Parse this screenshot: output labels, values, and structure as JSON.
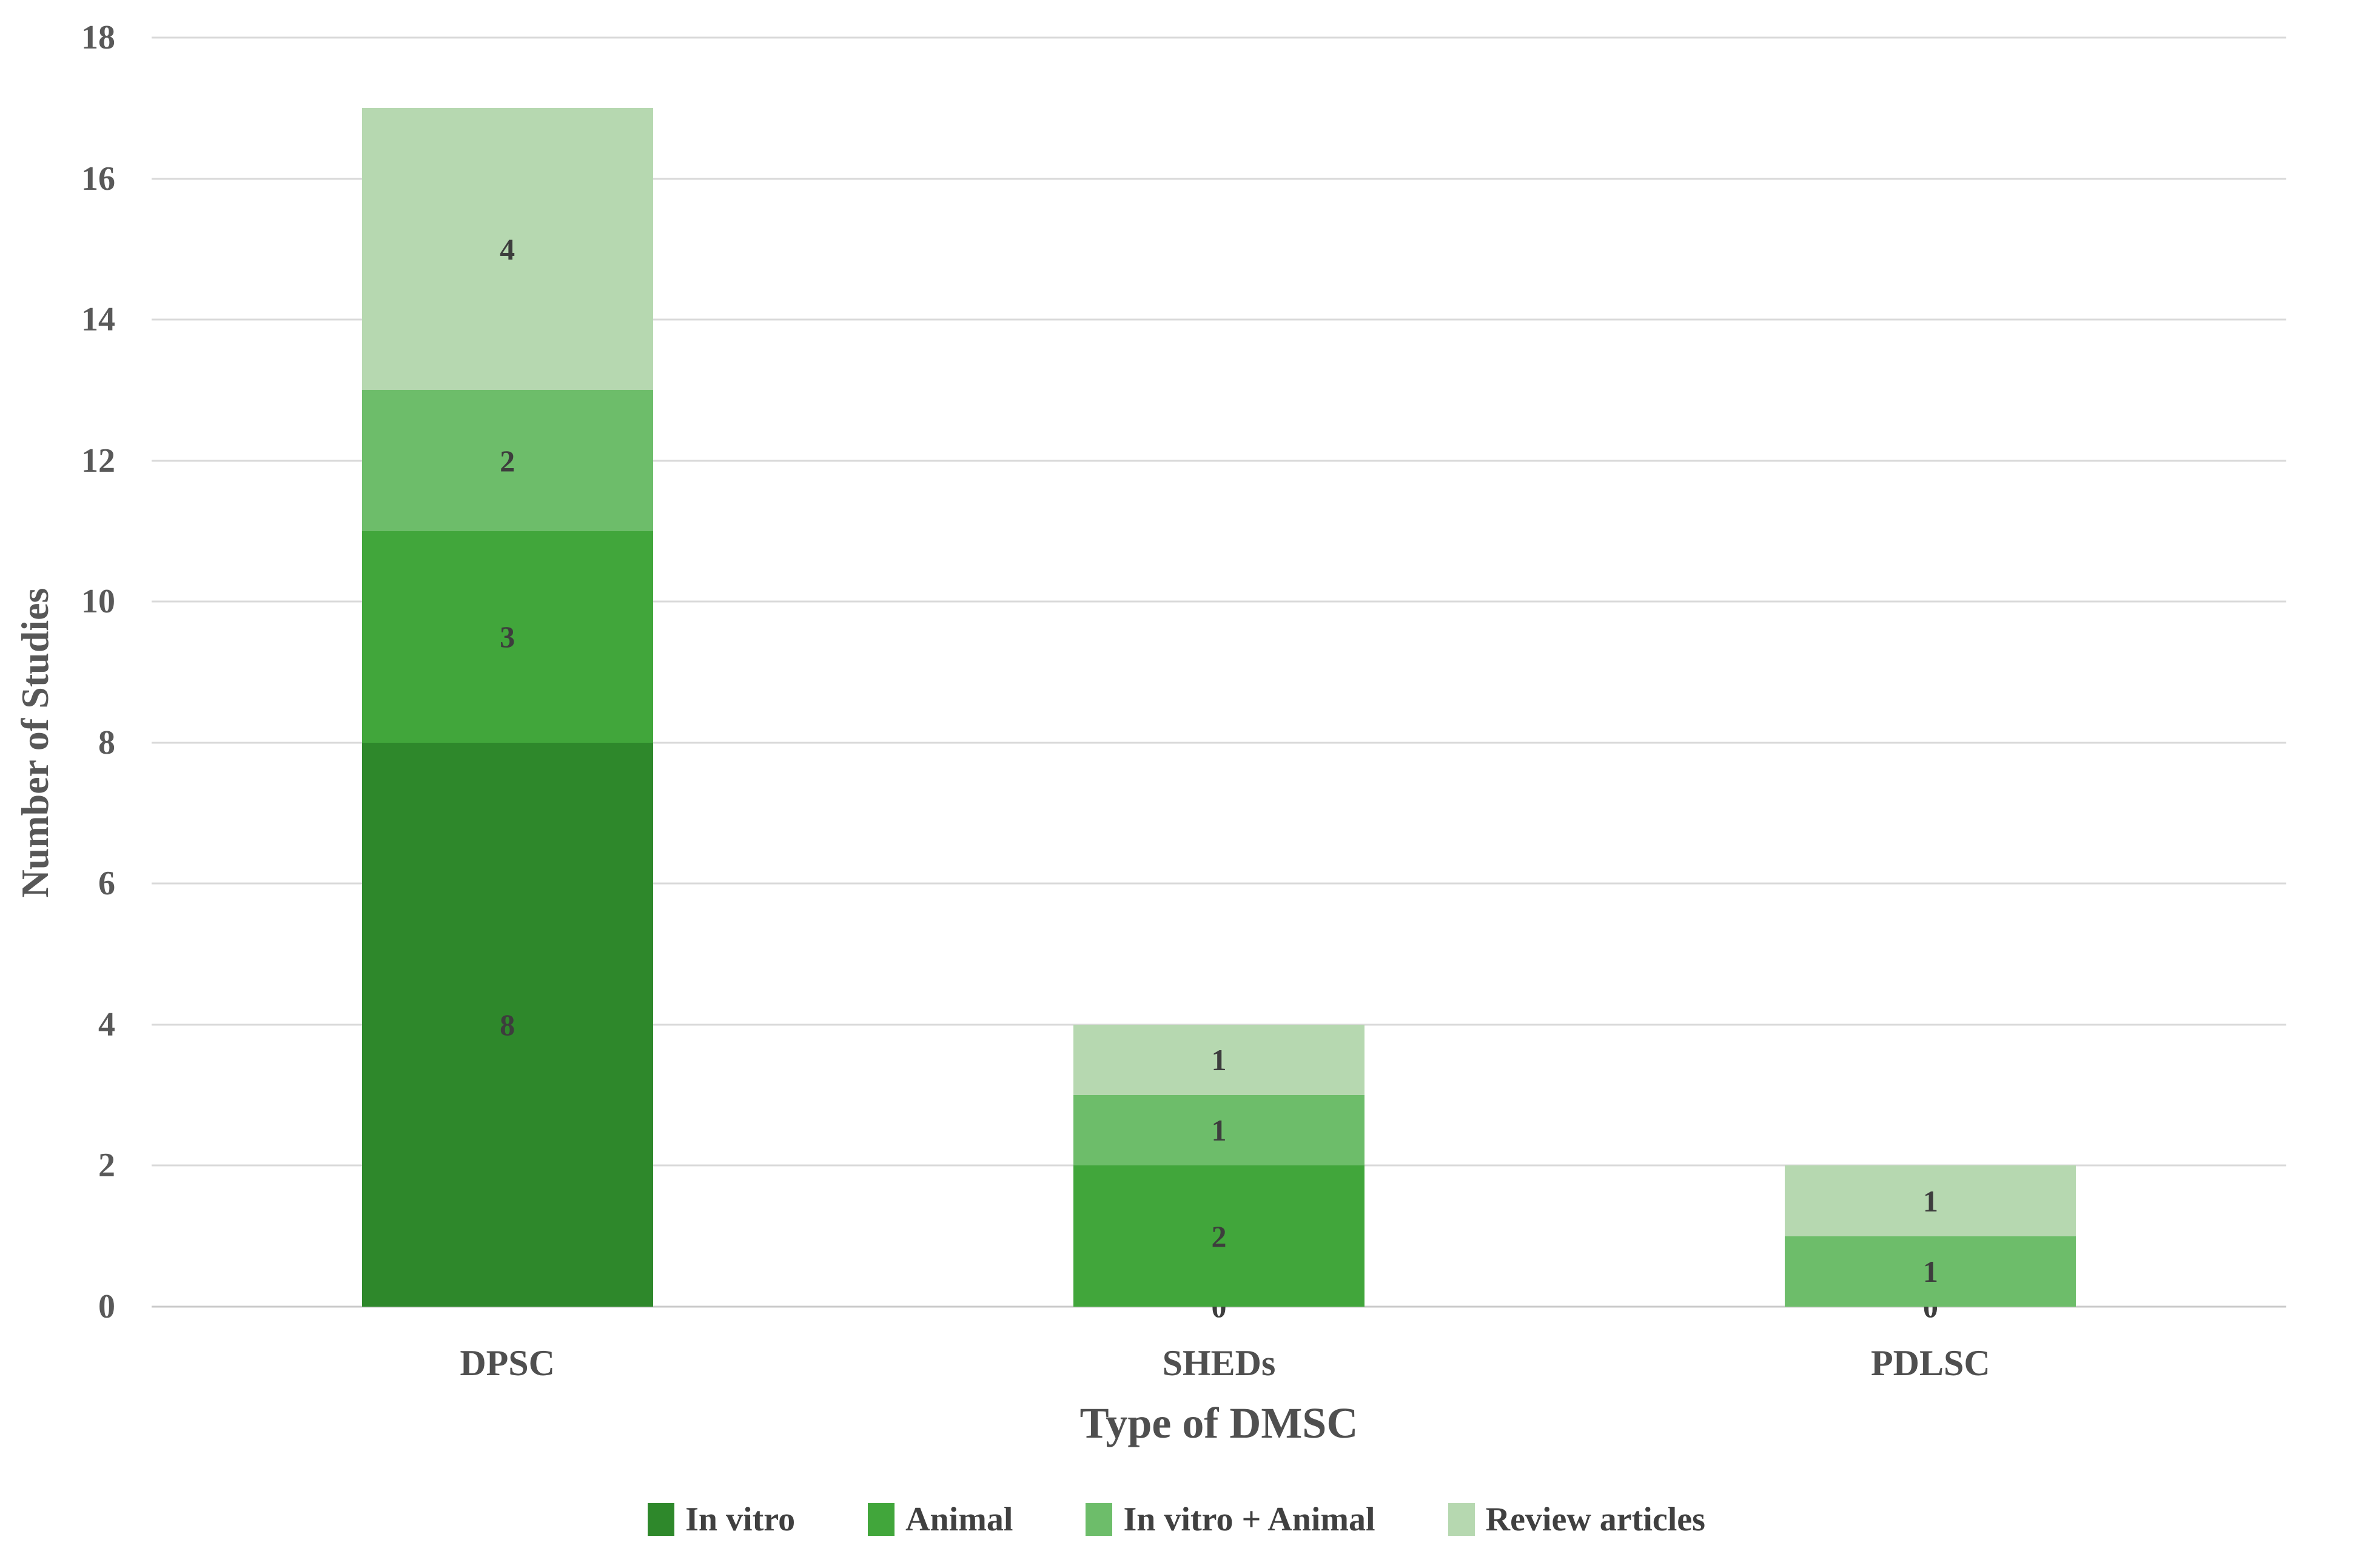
{
  "chart_data": {
    "type": "bar",
    "stacked": true,
    "title": "",
    "xlabel": "Type of DMSC",
    "ylabel": "Number of Studies",
    "categories": [
      "DPSC",
      "SHEDs",
      "PDLSC"
    ],
    "series": [
      {
        "name": "In vitro",
        "color": "#2e882b",
        "values": [
          8,
          0,
          0
        ]
      },
      {
        "name": "Animal",
        "color": "#41a63b",
        "values": [
          3,
          2,
          0
        ]
      },
      {
        "name": "In vitro + Animal",
        "color": "#6dbd6a",
        "values": [
          2,
          1,
          1
        ]
      },
      {
        "name": "Review articles",
        "color": "#b6d8b0",
        "values": [
          4,
          1,
          1
        ]
      }
    ],
    "bar_totals": [
      17,
      4,
      2
    ],
    "ylim": [
      0,
      18
    ],
    "yticks": [
      0,
      2,
      4,
      6,
      8,
      10,
      12,
      14,
      16,
      18
    ],
    "grid": true,
    "gridline_color": "#d9d9d9",
    "legend_position": "bottom",
    "data_labels_shown": true
  }
}
